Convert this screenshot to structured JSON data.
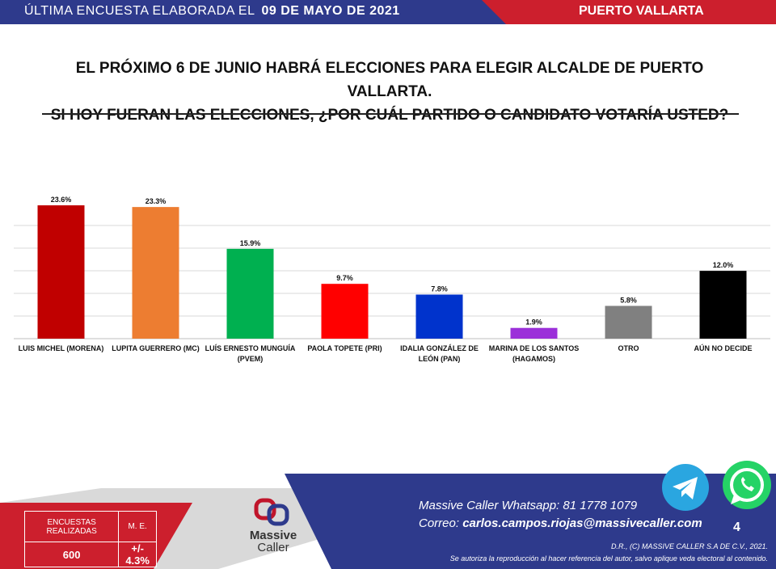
{
  "header": {
    "date_prefix": "ÚLTIMA ENCUESTA ELABORADA EL",
    "date": "09 DE MAYO DE 2021",
    "city": "PUERTO VALLARTA"
  },
  "question": {
    "line1": "EL PRÓXIMO 6 DE JUNIO HABRÁ ELECCIONES PARA ELEGIR ALCALDE DE PUERTO VALLARTA.",
    "line2": "SI HOY FUERAN LAS ELECCIONES, ¿POR CUÁL PARTIDO O CANDIDATO VOTARÍA USTED?"
  },
  "chart_data": {
    "type": "bar",
    "categories": [
      "LUIS MICHEL (MORENA)",
      "LUPITA GUERRERO (MC)",
      "LUÍS ERNESTO MUNGUÍA (PVEM)",
      "PAOLA TOPETE (PRI)",
      "IDALIA GONZÁLEZ DE LEÓN (PAN)",
      "MARINA DE LOS SANTOS (HAGAMOS)",
      "OTRO",
      "AÚN NO DECIDE"
    ],
    "category_lines": [
      [
        "LUIS MICHEL (MORENA)"
      ],
      [
        "LUPITA GUERRERO (MC)"
      ],
      [
        "LUÍS ERNESTO MUNGUÍA",
        "(PVEM)"
      ],
      [
        "PAOLA TOPETE (PRI)"
      ],
      [
        "IDALIA GONZÁLEZ DE",
        "LEÓN (PAN)"
      ],
      [
        "MARINA DE LOS SANTOS",
        "(HAGAMOS)"
      ],
      [
        "OTRO"
      ],
      [
        "AÚN NO DECIDE"
      ]
    ],
    "values": [
      23.6,
      23.3,
      15.9,
      9.7,
      7.8,
      1.9,
      5.8,
      12.0
    ],
    "value_labels": [
      "23.6%",
      "23.3%",
      "15.9%",
      "9.7%",
      "7.8%",
      "1.9%",
      "5.8%",
      "12.0%"
    ],
    "colors": [
      "#c00000",
      "#ed7d31",
      "#00b050",
      "#ff0000",
      "#0033cc",
      "#9b30d9",
      "#808080",
      "#000000"
    ],
    "ylim": [
      0,
      25
    ],
    "grid": true
  },
  "footer": {
    "table": {
      "col1_header": "ENCUESTAS REALIZADAS",
      "col2_header": "M. E.",
      "col1_value": "600",
      "col2_value": "+/- 4.3%"
    },
    "logo": {
      "line1": "Massive",
      "line2": "Caller"
    },
    "whatsapp_line": "Massive Caller Whatsapp:  81 1778 1079",
    "email_label": "Correo:",
    "email": "carlos.campos.riojas@massivecaller.com",
    "page_number": "4",
    "copyright": "D.R., (C) MASSIVE CALLER S.A DE C.V., 2021.",
    "disclaimer": "Se autoriza la reproducción al hacer referencia del autor, salvo aplique veda electoral al contenido."
  },
  "colors": {
    "navy": "#2e3a8c",
    "red": "#cc1f2d",
    "footer_gray": "#d9d9d9"
  },
  "icons": [
    "telegram-icon",
    "whatsapp-icon",
    "massive-caller-logo"
  ]
}
